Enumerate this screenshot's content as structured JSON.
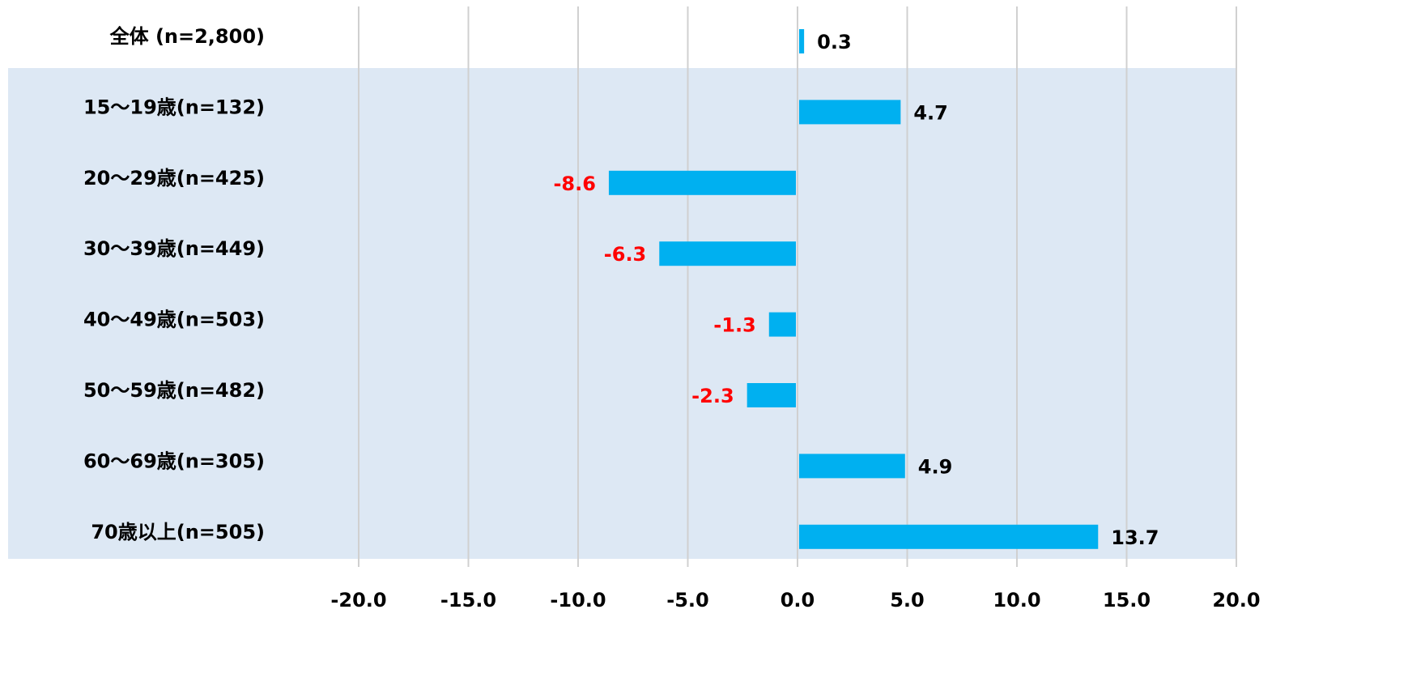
{
  "chart_data": {
    "type": "bar",
    "orientation": "horizontal",
    "categories": [
      "全体 (n=2,800)",
      "15～19歳(n=132)",
      "20～29歳(n=425)",
      "30～39歳(n=449)",
      "40～49歳(n=503)",
      "50～59歳(n=482)",
      "60～69歳(n=305)",
      "70歳以上(n=505)"
    ],
    "values": [
      0.3,
      4.7,
      -8.6,
      -6.3,
      -1.3,
      -2.3,
      4.9,
      13.7
    ],
    "color": "#00b0f0",
    "negative_label_color": "#ff0000",
    "xlim": [
      -20,
      20
    ],
    "xticks": [
      {
        "value": -20,
        "label": "-20.0"
      },
      {
        "value": -15,
        "label": "-15.0"
      },
      {
        "value": -10,
        "label": "-10.0"
      },
      {
        "value": -5,
        "label": "-5.0"
      },
      {
        "value": 0,
        "label": "0.0"
      },
      {
        "value": 5,
        "label": "5.0"
      },
      {
        "value": 10,
        "label": "10.0"
      },
      {
        "value": 15,
        "label": "15.0"
      },
      {
        "value": 20,
        "label": "20.0"
      }
    ],
    "grid": true
  }
}
